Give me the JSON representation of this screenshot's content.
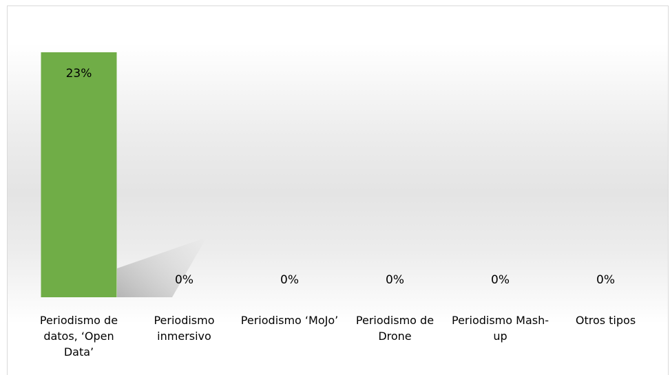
{
  "chart_data": {
    "type": "bar",
    "categories": [
      "Periodismo de datos, ‘Open Data’",
      "Periodismo inmersivo",
      "Periodismo ‘MoJo’",
      "Periodismo de Drone",
      "Periodismo Mash- up",
      "Otros tipos"
    ],
    "values": [
      23,
      0,
      0,
      0,
      0,
      0
    ],
    "value_labels": [
      "23%",
      "0%",
      "0%",
      "0%",
      "0%",
      "0%"
    ],
    "color": "#70ad47",
    "ylim": [
      0,
      25
    ]
  }
}
